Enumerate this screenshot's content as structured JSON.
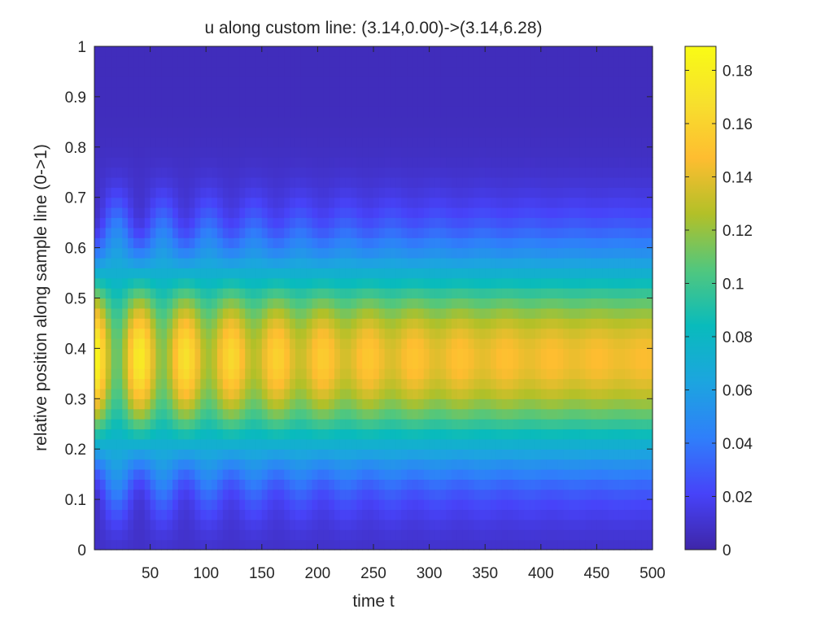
{
  "chart_data": {
    "type": "heatmap",
    "title": "u along custom line: (3.14,0.00)->(3.14,6.28)",
    "xlabel": "time t",
    "ylabel": "relative position along sample line (0->1)",
    "xlim": [
      0,
      500
    ],
    "ylim": [
      0,
      1
    ],
    "xticks": [
      50,
      100,
      150,
      200,
      250,
      300,
      350,
      400,
      450,
      500
    ],
    "xtick_labels": [
      "50",
      "100",
      "150",
      "200",
      "250",
      "300",
      "350",
      "400",
      "450",
      "500"
    ],
    "yticks": [
      0,
      0.1,
      0.2,
      0.3,
      0.4,
      0.5,
      0.6,
      0.7,
      0.8,
      0.9,
      1
    ],
    "ytick_labels": [
      "0",
      "0.1",
      "0.2",
      "0.3",
      "0.4",
      "0.5",
      "0.6",
      "0.7",
      "0.8",
      "0.9",
      "1"
    ],
    "colormap": "parula",
    "colorbar": {
      "clim": [
        0,
        0.189
      ],
      "ticks": [
        0,
        0.02,
        0.04,
        0.06,
        0.08,
        0.1,
        0.12,
        0.14,
        0.16,
        0.18
      ],
      "tick_labels": [
        "0",
        "0.02",
        "0.04",
        "0.06",
        "0.08",
        "0.1",
        "0.12",
        "0.14",
        "0.16",
        "0.18"
      ],
      "colors": [
        "#3e26a8",
        "#4743f9",
        "#2f7ffa",
        "#1ca5df",
        "#09bbbc",
        "#51c77e",
        "#b2c028",
        "#febd30",
        "#f7e02d",
        "#f9fb15"
      ]
    },
    "structure": {
      "peak_position": 0.38,
      "oscillation_period_t": 41,
      "steady_value_at_peak": 0.145,
      "peak_value_at_t0": 0.186,
      "trough_value_at_t20": 0.1,
      "value_at_edges": 0.005,
      "time_samples": 100,
      "position_samples": 50
    }
  }
}
